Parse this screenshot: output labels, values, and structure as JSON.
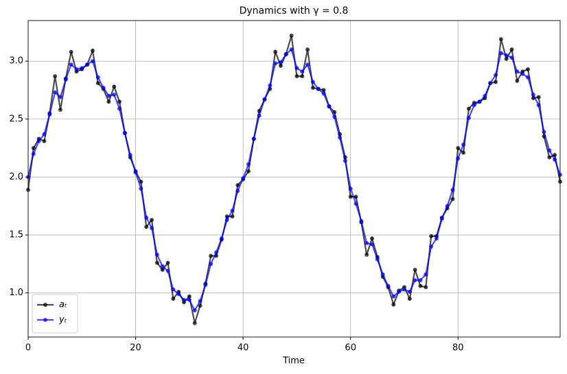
{
  "chart_data": {
    "type": "line",
    "title": "Dynamics with γ = 0.8",
    "xlabel": "Time",
    "x": [
      0,
      1,
      2,
      3,
      4,
      5,
      6,
      7,
      8,
      9,
      10,
      11,
      12,
      13,
      14,
      15,
      16,
      17,
      18,
      19,
      20,
      21,
      22,
      23,
      24,
      25,
      26,
      27,
      28,
      29,
      30,
      31,
      32,
      33,
      34,
      35,
      36,
      37,
      38,
      39,
      40,
      41,
      42,
      43,
      44,
      45,
      46,
      47,
      48,
      49,
      50,
      51,
      52,
      53,
      54,
      55,
      56,
      57,
      58,
      59,
      60,
      61,
      62,
      63,
      64,
      65,
      66,
      67,
      68,
      69,
      70,
      71,
      72,
      73,
      74,
      75,
      76,
      77,
      78,
      79,
      80,
      81,
      82,
      83,
      84,
      85,
      86,
      87,
      88,
      89,
      90,
      91,
      92,
      93,
      94,
      95,
      96,
      97,
      98,
      99
    ],
    "series": [
      {
        "name": "aₜ",
        "color": "#000000",
        "values": [
          1.89,
          2.25,
          2.33,
          2.31,
          2.55,
          2.87,
          2.58,
          2.85,
          3.08,
          2.91,
          2.93,
          2.97,
          3.09,
          2.81,
          2.76,
          2.65,
          2.78,
          2.65,
          2.38,
          2.17,
          2.05,
          1.96,
          1.57,
          1.63,
          1.26,
          1.2,
          1.26,
          0.95,
          1.01,
          0.92,
          0.97,
          0.74,
          0.89,
          1.08,
          1.32,
          1.32,
          1.46,
          1.66,
          1.66,
          1.93,
          1.98,
          2.05,
          2.33,
          2.57,
          2.67,
          2.76,
          3.08,
          2.96,
          3.06,
          3.22,
          2.87,
          2.87,
          3.1,
          2.77,
          2.76,
          2.75,
          2.61,
          2.56,
          2.37,
          2.17,
          1.83,
          1.83,
          1.61,
          1.33,
          1.47,
          1.31,
          1.14,
          1.05,
          0.9,
          1.02,
          1.05,
          0.95,
          1.2,
          1.06,
          1.05,
          1.49,
          1.49,
          1.65,
          1.73,
          1.81,
          2.25,
          2.21,
          2.59,
          2.64,
          2.65,
          2.68,
          2.81,
          2.82,
          3.19,
          3.02,
          3.1,
          2.83,
          2.91,
          2.93,
          2.68,
          2.69,
          2.35,
          2.17,
          2.19,
          1.96
        ]
      },
      {
        "name": "yₜ",
        "color": "#0000ff",
        "values": [
          2.0,
          2.2,
          2.31,
          2.37,
          2.54,
          2.73,
          2.69,
          2.84,
          2.97,
          2.93,
          2.94,
          2.97,
          3.0,
          2.86,
          2.77,
          2.7,
          2.71,
          2.59,
          2.38,
          2.19,
          2.04,
          1.9,
          1.65,
          1.56,
          1.33,
          1.23,
          1.19,
          1.03,
          0.99,
          0.94,
          0.94,
          0.85,
          0.93,
          1.07,
          1.25,
          1.35,
          1.47,
          1.63,
          1.71,
          1.88,
          1.99,
          2.11,
          2.33,
          2.53,
          2.67,
          2.79,
          2.98,
          2.99,
          3.06,
          3.1,
          2.94,
          2.91,
          2.97,
          2.82,
          2.76,
          2.72,
          2.61,
          2.52,
          2.34,
          2.14,
          1.9,
          1.77,
          1.62,
          1.43,
          1.42,
          1.29,
          1.16,
          1.06,
          0.97,
          1.01,
          1.03,
          1.01,
          1.11,
          1.11,
          1.16,
          1.4,
          1.47,
          1.64,
          1.75,
          1.89,
          2.16,
          2.28,
          2.51,
          2.62,
          2.65,
          2.7,
          2.81,
          2.88,
          3.07,
          3.05,
          3.03,
          2.91,
          2.89,
          2.86,
          2.71,
          2.62,
          2.39,
          2.23,
          2.15,
          2.02
        ]
      }
    ],
    "alpha": 0.7,
    "xlim": [
      0,
      99
    ],
    "ylim": [
      0.62,
      3.35
    ],
    "xticks": [
      0,
      20,
      40,
      60,
      80
    ],
    "yticks": [
      {
        "value": 1,
        "label": "1.0"
      },
      1.5,
      {
        "value": 2,
        "label": "2.0"
      },
      2.5,
      {
        "value": 3,
        "label": "3.0"
      }
    ],
    "grid": true,
    "legend": "lower left"
  }
}
